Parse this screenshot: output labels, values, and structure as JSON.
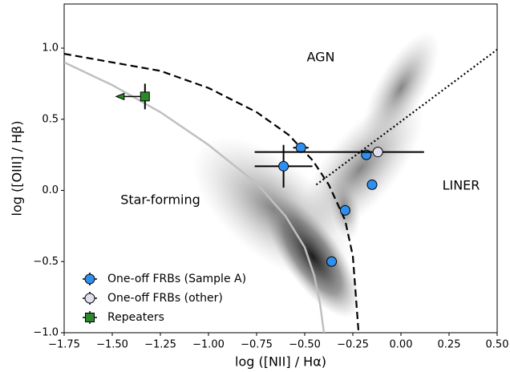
{
  "chart_data": {
    "type": "scatter",
    "xlabel": "log ([NII] / Hα)",
    "ylabel": "log ([OIII] / Hβ)",
    "annotations": [
      "AGN",
      "LINER",
      "Star-forming"
    ],
    "xlim": [
      -1.75,
      0.5
    ],
    "ylim": [
      -1.0,
      1.31
    ],
    "xticks": [
      {
        "value": -1.75,
        "label": "−1.75"
      },
      {
        "value": -1.5,
        "label": "−1.50"
      },
      {
        "value": -1.25,
        "label": "−1.25"
      },
      {
        "value": -1.0,
        "label": "−1.00"
      },
      {
        "value": -0.75,
        "label": "−0.75"
      },
      {
        "value": -0.5,
        "label": "−0.50"
      },
      {
        "value": -0.25,
        "label": "−0.25"
      },
      {
        "value": 0.0,
        "label": "0.00"
      },
      {
        "value": 0.25,
        "label": "0.25"
      },
      {
        "value": 0.5,
        "label": "0.50"
      }
    ],
    "yticks": [
      {
        "value": -1.0,
        "label": "−1.0"
      },
      {
        "value": -0.5,
        "label": "−0.5"
      },
      {
        "value": 0.0,
        "label": "0.0"
      },
      {
        "value": 0.5,
        "label": "0.5"
      },
      {
        "value": 1.0,
        "label": "1.0"
      }
    ],
    "legend": "lower left",
    "lines": [
      {
        "style": "dashed",
        "color": "#000000",
        "x": [
          -1.75,
          -1.25,
          -1.0,
          -0.75,
          -0.583,
          -0.458,
          -0.375,
          -0.29,
          -0.25,
          -0.22
        ],
        "y": [
          0.96,
          0.84,
          0.72,
          0.55,
          0.39,
          0.21,
          0.04,
          -0.21,
          -0.46,
          -1.0
        ]
      },
      {
        "style": "solid",
        "color": "#c0c0c0",
        "x": [
          -1.75,
          -1.5,
          -1.25,
          -1.0,
          -0.75,
          -0.6,
          -0.5,
          -0.45,
          -0.42,
          -0.4
        ],
        "y": [
          0.9,
          0.74,
          0.55,
          0.32,
          0.05,
          -0.18,
          -0.4,
          -0.6,
          -0.8,
          -1.0
        ]
      },
      {
        "style": "dotted",
        "color": "#000000",
        "x": [
          -0.44,
          0.5
        ],
        "y": [
          0.04,
          0.99
        ]
      }
    ],
    "series": [
      {
        "name": "One-off FRBs (Sample A)",
        "color": "#2f8fef",
        "marker": "o",
        "x": [
          -0.52,
          -0.61,
          -0.18,
          -0.15,
          -0.29,
          -0.36
        ],
        "y": [
          0.3,
          0.17,
          0.25,
          0.04,
          -0.14,
          -0.5
        ],
        "xerr": [
          0.04,
          0.15,
          null,
          null,
          null,
          null
        ],
        "yerr": [
          0.03,
          0.15,
          null,
          null,
          null,
          null
        ]
      },
      {
        "name": "One-off FRBs (other)",
        "color": "#e4dff0",
        "marker": "o",
        "x": [
          -0.12
        ],
        "y": [
          0.27
        ],
        "xerr": [
          [
            0.64,
            0.24
          ]
        ],
        "yerr": [
          null
        ]
      },
      {
        "name": "Repeaters",
        "color": "#2a8a2a",
        "marker": "s",
        "x": [
          -1.33
        ],
        "y": [
          0.66
        ],
        "xerr": [
          null
        ],
        "yerr": [
          0.09
        ],
        "x_upper_limit": true
      }
    ]
  }
}
